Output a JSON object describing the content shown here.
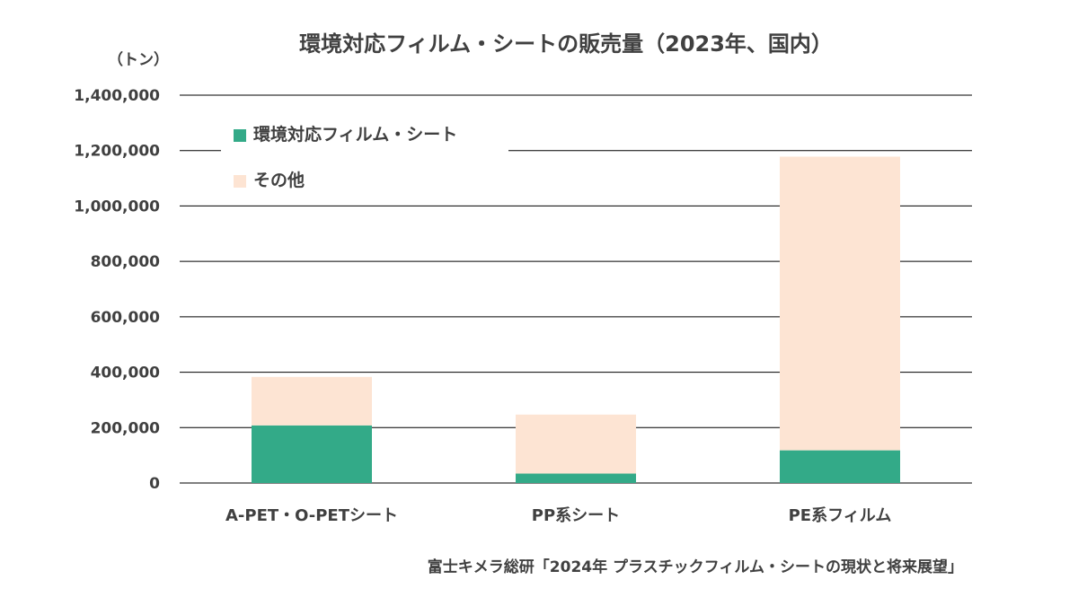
{
  "chart_data": {
    "type": "bar",
    "stacked": true,
    "title": "環境対応フィルム・シートの販売量（2023年、国内）",
    "unit_label": "（トン）",
    "categories": [
      "A-PET・O-PETシート",
      "PP系シート",
      "PE系フィルム"
    ],
    "series": [
      {
        "name": "環境対応フィルム・シート",
        "color": "#33AA88",
        "values": [
          208000,
          34000,
          118000
        ]
      },
      {
        "name": "その他",
        "color": "#FDE4D3",
        "values": [
          175000,
          213000,
          1060000
        ]
      }
    ],
    "ylim": [
      0,
      1400000
    ],
    "y_ticks": [
      "0",
      "200,000",
      "400,000",
      "600,000",
      "800,000",
      "1,000,000",
      "1,200,000",
      "1,400,000"
    ],
    "grid": true,
    "legend_position": "top-left",
    "source": "富士キメラ総研「2024年 プラスチックフィルム・シートの現状と将来展望」"
  }
}
